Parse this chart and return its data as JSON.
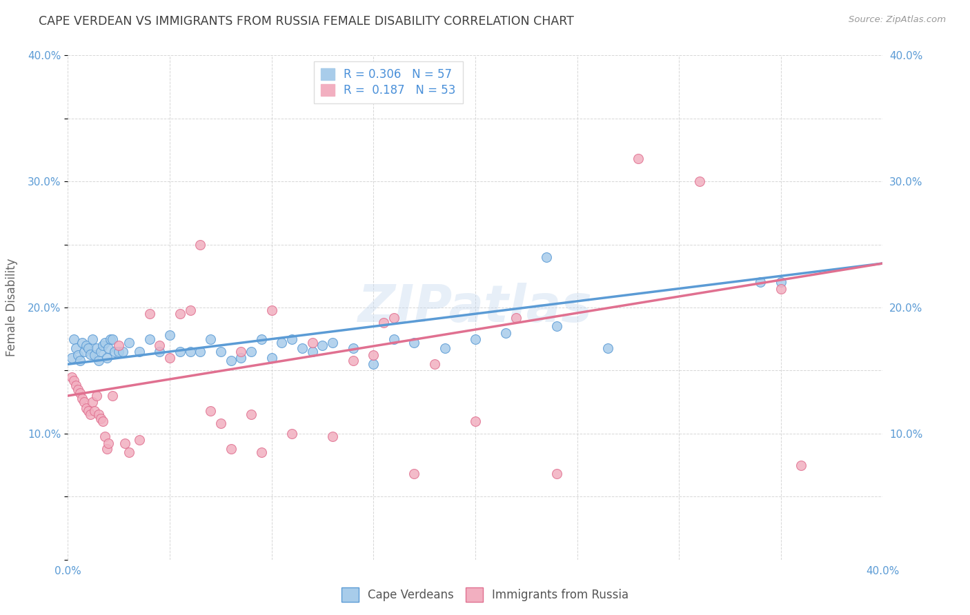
{
  "title": "CAPE VERDEAN VS IMMIGRANTS FROM RUSSIA FEMALE DISABILITY CORRELATION CHART",
  "source": "Source: ZipAtlas.com",
  "ylabel": "Female Disability",
  "xlim": [
    0.0,
    0.4
  ],
  "ylim": [
    0.0,
    0.4
  ],
  "xticks": [
    0.0,
    0.05,
    0.1,
    0.15,
    0.2,
    0.25,
    0.3,
    0.35,
    0.4
  ],
  "yticks": [
    0.0,
    0.05,
    0.1,
    0.15,
    0.2,
    0.25,
    0.3,
    0.35,
    0.4
  ],
  "watermark": "ZIPatlas",
  "series1_color": "#a8ccea",
  "series2_color": "#f2afc0",
  "series1_line_color": "#5b9bd5",
  "series2_line_color": "#e07090",
  "series1_label": "Cape Verdeans",
  "series2_label": "Immigrants from Russia",
  "background_color": "#ffffff",
  "grid_color": "#cccccc",
  "title_color": "#404040",
  "axis_label_color": "#666666",
  "tick_label_color": "#5b9bd5",
  "series1_x": [
    0.002,
    0.003,
    0.004,
    0.005,
    0.006,
    0.007,
    0.008,
    0.009,
    0.01,
    0.011,
    0.012,
    0.013,
    0.014,
    0.015,
    0.016,
    0.017,
    0.018,
    0.019,
    0.02,
    0.021,
    0.022,
    0.023,
    0.025,
    0.027,
    0.03,
    0.035,
    0.04,
    0.045,
    0.05,
    0.055,
    0.06,
    0.065,
    0.07,
    0.075,
    0.08,
    0.085,
    0.09,
    0.095,
    0.1,
    0.105,
    0.11,
    0.115,
    0.12,
    0.125,
    0.13,
    0.14,
    0.15,
    0.16,
    0.17,
    0.185,
    0.2,
    0.215,
    0.235,
    0.24,
    0.265,
    0.34,
    0.35
  ],
  "series1_y": [
    0.16,
    0.175,
    0.168,
    0.162,
    0.158,
    0.172,
    0.165,
    0.17,
    0.168,
    0.163,
    0.175,
    0.162,
    0.168,
    0.158,
    0.165,
    0.17,
    0.172,
    0.16,
    0.168,
    0.175,
    0.175,
    0.165,
    0.165,
    0.165,
    0.172,
    0.165,
    0.175,
    0.165,
    0.178,
    0.165,
    0.165,
    0.165,
    0.175,
    0.165,
    0.158,
    0.16,
    0.165,
    0.175,
    0.16,
    0.172,
    0.175,
    0.168,
    0.165,
    0.17,
    0.172,
    0.168,
    0.155,
    0.175,
    0.172,
    0.168,
    0.175,
    0.18,
    0.24,
    0.185,
    0.168,
    0.22,
    0.22
  ],
  "series2_x": [
    0.002,
    0.003,
    0.004,
    0.005,
    0.006,
    0.007,
    0.008,
    0.009,
    0.01,
    0.011,
    0.012,
    0.013,
    0.014,
    0.015,
    0.016,
    0.017,
    0.018,
    0.019,
    0.02,
    0.022,
    0.025,
    0.028,
    0.03,
    0.035,
    0.04,
    0.045,
    0.05,
    0.055,
    0.06,
    0.065,
    0.07,
    0.075,
    0.08,
    0.085,
    0.09,
    0.095,
    0.1,
    0.11,
    0.12,
    0.13,
    0.14,
    0.15,
    0.155,
    0.16,
    0.17,
    0.18,
    0.2,
    0.22,
    0.24,
    0.28,
    0.31,
    0.35,
    0.36
  ],
  "series2_y": [
    0.145,
    0.142,
    0.138,
    0.135,
    0.132,
    0.128,
    0.125,
    0.12,
    0.118,
    0.115,
    0.125,
    0.118,
    0.13,
    0.115,
    0.112,
    0.11,
    0.098,
    0.088,
    0.092,
    0.13,
    0.17,
    0.092,
    0.085,
    0.095,
    0.195,
    0.17,
    0.16,
    0.195,
    0.198,
    0.25,
    0.118,
    0.108,
    0.088,
    0.165,
    0.115,
    0.085,
    0.198,
    0.1,
    0.172,
    0.098,
    0.158,
    0.162,
    0.188,
    0.192,
    0.068,
    0.155,
    0.11,
    0.192,
    0.068,
    0.318,
    0.3,
    0.215,
    0.075
  ],
  "trend1_x0": 0.0,
  "trend1_y0": 0.155,
  "trend1_x1": 0.4,
  "trend1_y1": 0.235,
  "trend2_x0": 0.0,
  "trend2_y0": 0.13,
  "trend2_x1": 0.4,
  "trend2_y1": 0.235
}
